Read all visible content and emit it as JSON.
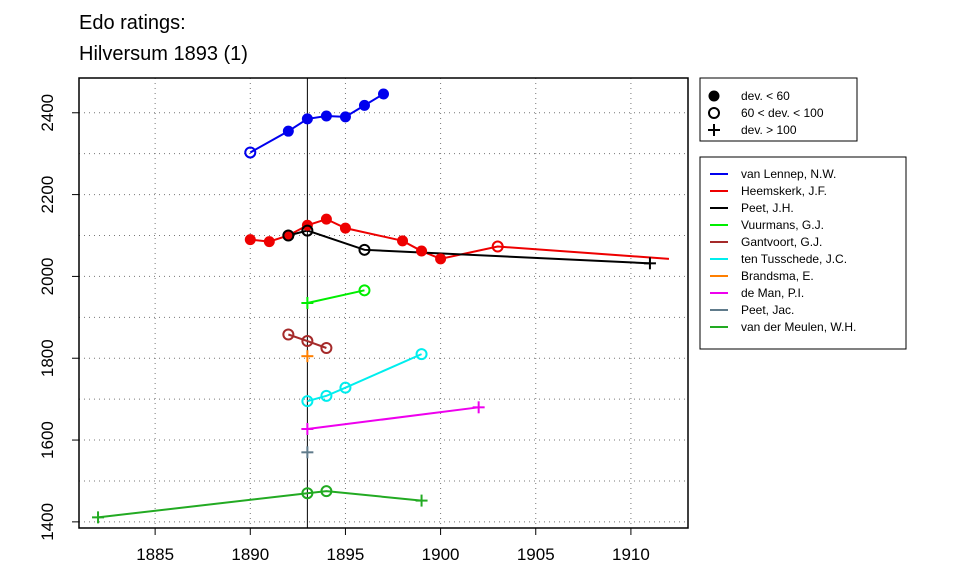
{
  "chart_data": {
    "type": "line",
    "title": "Edo ratings:",
    "subtitle": "Hilversum 1893 (1)",
    "xlabel": "",
    "ylabel": "",
    "xlim": [
      1881,
      1913
    ],
    "ylim": [
      1385,
      2485
    ],
    "x_ticks": [
      1885,
      1890,
      1895,
      1900,
      1905,
      1910
    ],
    "y_ticks": [
      1400,
      1600,
      1800,
      2000,
      2200,
      2400
    ],
    "grid": true,
    "reference_line_x": 1893,
    "marker_legend": [
      {
        "label": "dev. < 60",
        "marker": "filled"
      },
      {
        "label": "60 < dev. < 100",
        "marker": "open"
      },
      {
        "label": "dev. > 100",
        "marker": "plus"
      }
    ],
    "series": [
      {
        "name": "van Lennep, N.W.",
        "color": "#0000ee",
        "points": [
          {
            "x": 1890,
            "y": 2303,
            "m": "open"
          },
          {
            "x": 1892,
            "y": 2355,
            "m": "filled"
          },
          {
            "x": 1893,
            "y": 2385,
            "m": "filled"
          },
          {
            "x": 1894,
            "y": 2392,
            "m": "filled"
          },
          {
            "x": 1895,
            "y": 2390,
            "m": "filled"
          },
          {
            "x": 1896,
            "y": 2418,
            "m": "filled"
          },
          {
            "x": 1897,
            "y": 2446,
            "m": "filled"
          }
        ]
      },
      {
        "name": "Heemskerk, J.F.",
        "color": "#ee0000",
        "points": [
          {
            "x": 1890,
            "y": 2090,
            "m": "filled"
          },
          {
            "x": 1891,
            "y": 2085,
            "m": "filled"
          },
          {
            "x": 1892,
            "y": 2100,
            "m": "filled"
          },
          {
            "x": 1893,
            "y": 2125,
            "m": "filled"
          },
          {
            "x": 1894,
            "y": 2140,
            "m": "filled"
          },
          {
            "x": 1895,
            "y": 2118,
            "m": "filled"
          },
          {
            "x": 1898,
            "y": 2087,
            "m": "filled"
          },
          {
            "x": 1899,
            "y": 2062,
            "m": "filled"
          },
          {
            "x": 1900,
            "y": 2043,
            "m": "filled"
          },
          {
            "x": 1903,
            "y": 2073,
            "m": "open"
          },
          {
            "x": 1912,
            "y": 2043,
            "m": "none"
          }
        ]
      },
      {
        "name": "Peet, J.H.",
        "color": "#000000",
        "points": [
          {
            "x": 1892,
            "y": 2100,
            "m": "open"
          },
          {
            "x": 1893,
            "y": 2112,
            "m": "open"
          },
          {
            "x": 1896,
            "y": 2065,
            "m": "open"
          },
          {
            "x": 1911,
            "y": 2032,
            "m": "plus"
          }
        ]
      },
      {
        "name": "Vuurmans, G.J.",
        "color": "#00ee00",
        "points": [
          {
            "x": 1893,
            "y": 1935,
            "m": "plus"
          },
          {
            "x": 1896,
            "y": 1966,
            "m": "open"
          }
        ]
      },
      {
        "name": "Gantvoort, G.J.",
        "color": "#a52a2a",
        "points": [
          {
            "x": 1892,
            "y": 1858,
            "m": "open"
          },
          {
            "x": 1893,
            "y": 1842,
            "m": "open"
          },
          {
            "x": 1894,
            "y": 1825,
            "m": "open"
          }
        ]
      },
      {
        "name": "ten Tusschede, J.C.",
        "color": "#00eeee",
        "points": [
          {
            "x": 1893,
            "y": 1695,
            "m": "open"
          },
          {
            "x": 1894,
            "y": 1708,
            "m": "open"
          },
          {
            "x": 1895,
            "y": 1728,
            "m": "open"
          },
          {
            "x": 1899,
            "y": 1810,
            "m": "open"
          }
        ]
      },
      {
        "name": "Brandsma, E.",
        "color": "#ff7f00",
        "points": [
          {
            "x": 1893,
            "y": 1805,
            "m": "plus"
          }
        ]
      },
      {
        "name": "de Man, P.I.",
        "color": "#ee00ee",
        "points": [
          {
            "x": 1893,
            "y": 1627,
            "m": "plus"
          },
          {
            "x": 1902,
            "y": 1680,
            "m": "plus"
          }
        ]
      },
      {
        "name": "Peet, Jac.",
        "color": "#607b8b",
        "points": [
          {
            "x": 1893,
            "y": 1570,
            "m": "plus"
          }
        ]
      },
      {
        "name": "van der Meulen, W.H.",
        "color": "#22aa22",
        "points": [
          {
            "x": 1882,
            "y": 1411,
            "m": "plus"
          },
          {
            "x": 1893,
            "y": 1470,
            "m": "open"
          },
          {
            "x": 1894,
            "y": 1475,
            "m": "open"
          },
          {
            "x": 1899,
            "y": 1452,
            "m": "plus"
          }
        ]
      }
    ]
  }
}
